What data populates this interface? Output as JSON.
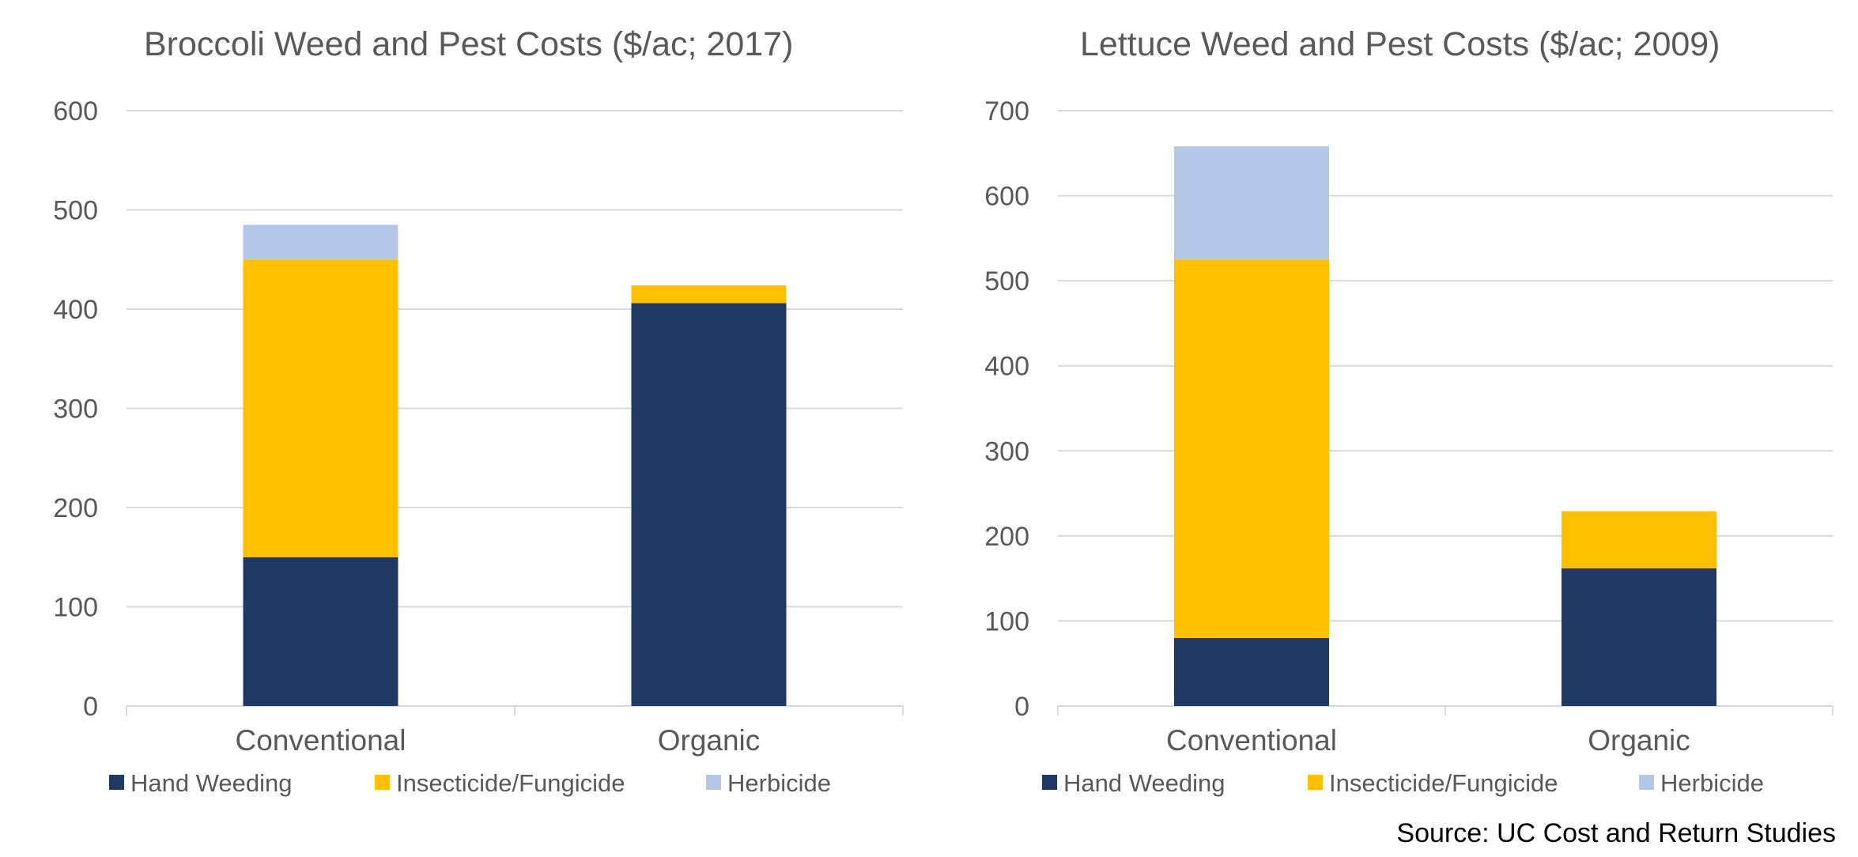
{
  "colors": {
    "hand_weeding": "#203864",
    "insecticide_fungicide": "#FFC000",
    "herbicide": "#B4C7E7",
    "gridline": "#D9D9D9",
    "axis_text": "#595959",
    "title_text": "#595959"
  },
  "chart_data": [
    {
      "type": "bar",
      "stacked": true,
      "title": "Broccoli Weed and Pest Costs ($/ac; 2017)",
      "xlabel": "",
      "ylabel": "",
      "categories": [
        "Conventional",
        "Organic"
      ],
      "series": [
        {
          "name": "Hand Weeding",
          "values": [
            150,
            406
          ]
        },
        {
          "name": "Insecticide/Fungicide",
          "values": [
            300,
            18
          ]
        },
        {
          "name": "Herbicide",
          "values": [
            35,
            0
          ]
        }
      ],
      "ylim": [
        0,
        600
      ],
      "yticks": [
        0,
        100,
        200,
        300,
        400,
        500,
        600
      ],
      "grid": true,
      "legend_position": "bottom"
    },
    {
      "type": "bar",
      "stacked": true,
      "title": "Lettuce Weed and Pest Costs ($/ac; 2009)",
      "xlabel": "",
      "ylabel": "",
      "categories": [
        "Conventional",
        "Organic"
      ],
      "series": [
        {
          "name": "Hand Weeding",
          "values": [
            80,
            162
          ]
        },
        {
          "name": "Insecticide/Fungicide",
          "values": [
            445,
            67
          ]
        },
        {
          "name": "Herbicide",
          "values": [
            133,
            0
          ]
        }
      ],
      "ylim": [
        0,
        700
      ],
      "yticks": [
        0,
        100,
        200,
        300,
        400,
        500,
        600,
        700
      ],
      "grid": true,
      "legend_position": "bottom"
    }
  ],
  "source": "Source: UC Cost and Return Studies"
}
